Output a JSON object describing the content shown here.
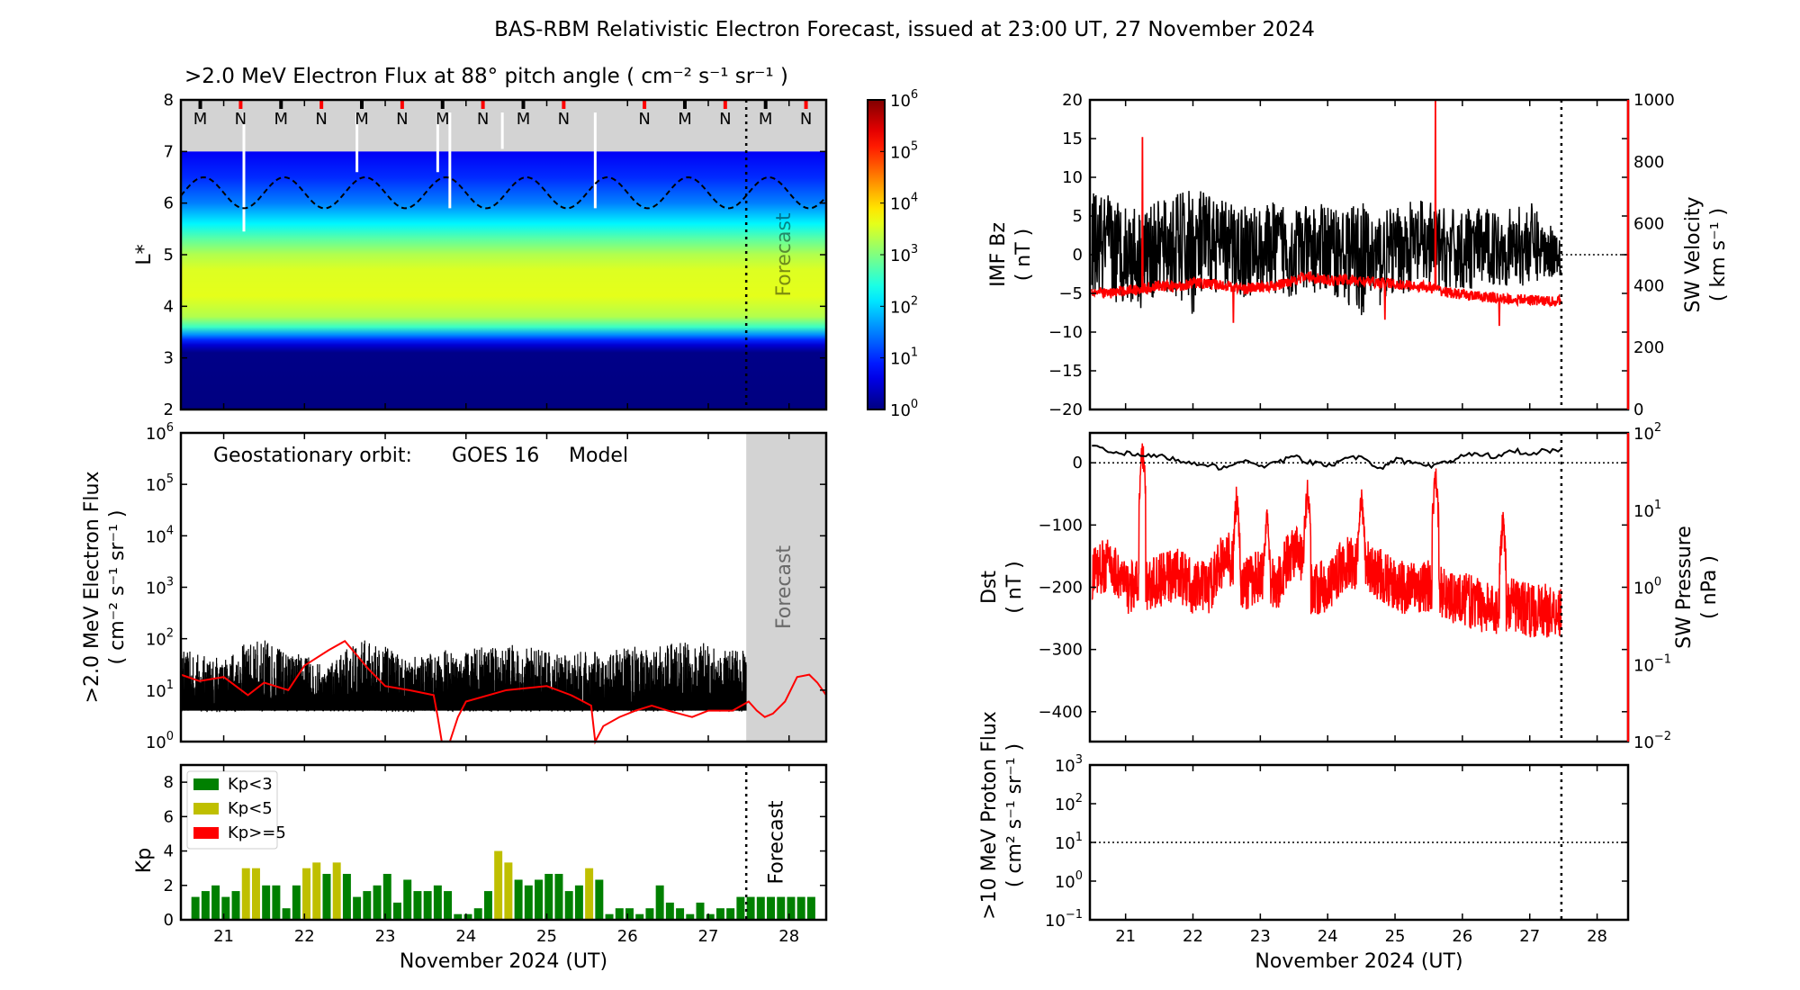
{
  "title": "BAS-RBM Relativistic Electron Forecast, issued at 23:00 UT, 27 November 2024",
  "x_axis": {
    "label": "November 2024 (UT)",
    "ticks": [
      21,
      22,
      23,
      24,
      25,
      26,
      27,
      28
    ],
    "xlim": [
      20.47,
      28.46
    ],
    "forecast_start": 27.47
  },
  "forecast_label": "Forecast",
  "chart_data": [
    {
      "id": "lstar_flux",
      "type": "heatmap",
      "title": ">2.0 MeV Electron Flux at 88° pitch angle ( cm⁻² s⁻¹ sr⁻¹ )",
      "ylabel": "L*",
      "ylim": [
        2,
        8
      ],
      "yticks": [
        2,
        3,
        4,
        5,
        6,
        7,
        8
      ],
      "no_data_above_L": 7,
      "log10_flux_profile": [
        {
          "L": 2.0,
          "v": 0.0
        },
        {
          "L": 3.1,
          "v": 0.05
        },
        {
          "L": 3.25,
          "v": 0.5
        },
        {
          "L": 3.35,
          "v": 1.0
        },
        {
          "L": 3.45,
          "v": 1.6
        },
        {
          "L": 3.6,
          "v": 2.6
        },
        {
          "L": 3.8,
          "v": 3.3
        },
        {
          "L": 4.2,
          "v": 3.6
        },
        {
          "L": 4.7,
          "v": 3.55
        },
        {
          "L": 5.0,
          "v": 3.3
        },
        {
          "L": 5.3,
          "v": 2.8
        },
        {
          "L": 5.6,
          "v": 2.2
        },
        {
          "L": 6.0,
          "v": 1.5
        },
        {
          "L": 6.5,
          "v": 1.0
        },
        {
          "L": 7.0,
          "v": 0.7
        }
      ],
      "dashed_curve": {
        "mean_L": 6.2,
        "amplitude_L": 0.3,
        "period_days": 1
      },
      "markers": [
        {
          "x": 20.71,
          "label": "M",
          "color": "#000000"
        },
        {
          "x": 21.21,
          "label": "N",
          "color": "#ff0000"
        },
        {
          "x": 21.71,
          "label": "M",
          "color": "#000000"
        },
        {
          "x": 22.21,
          "label": "N",
          "color": "#ff0000"
        },
        {
          "x": 22.71,
          "label": "M",
          "color": "#000000"
        },
        {
          "x": 23.21,
          "label": "N",
          "color": "#ff0000"
        },
        {
          "x": 23.71,
          "label": "M",
          "color": "#000000"
        },
        {
          "x": 24.21,
          "label": "N",
          "color": "#ff0000"
        },
        {
          "x": 24.71,
          "label": "M",
          "color": "#000000"
        },
        {
          "x": 25.21,
          "label": "N",
          "color": "#ff0000"
        },
        {
          "x": 26.21,
          "label": "N",
          "color": "#ff0000"
        },
        {
          "x": 26.71,
          "label": "M",
          "color": "#000000"
        },
        {
          "x": 27.21,
          "label": "N",
          "color": "#ff0000"
        },
        {
          "x": 27.71,
          "label": "M",
          "color": "#000000"
        },
        {
          "x": 28.21,
          "label": "N",
          "color": "#ff0000"
        }
      ],
      "colorbar": {
        "min_exp": 0,
        "max_exp": 6,
        "tick_exps": [
          0,
          1,
          2,
          3,
          4,
          5,
          6
        ],
        "colormap": "jet"
      }
    },
    {
      "id": "geo_flux",
      "type": "line",
      "title_left": "Geostationary orbit:",
      "title_sat": "GOES 16",
      "title_model": "Model",
      "ylabel": [
        ">2.0 MeV Electron Flux",
        "( cm⁻² s⁻¹ sr⁻¹ )"
      ],
      "yscale": "log",
      "ylim_exp": [
        0,
        6
      ],
      "tick_exps": [
        0,
        1,
        2,
        3,
        4,
        5,
        6
      ],
      "goes_floor": 4,
      "goes_peak_per_6h": [
        60,
        50,
        40,
        80,
        100,
        60,
        50,
        30,
        60,
        100,
        70,
        40,
        50,
        60,
        60,
        70,
        80,
        70,
        60,
        50,
        60,
        50,
        80,
        60,
        80,
        90,
        80,
        60
      ],
      "model_x": [
        20.47,
        20.7,
        21.0,
        21.3,
        21.5,
        21.8,
        22.0,
        22.3,
        22.5,
        22.8,
        23.0,
        23.3,
        23.6,
        23.65,
        23.7,
        23.8,
        23.9,
        24.0,
        24.5,
        25.0,
        25.3,
        25.55,
        25.6,
        25.7,
        25.9,
        26.1,
        26.3,
        26.5,
        26.8,
        27.0,
        27.3,
        27.5,
        27.6,
        27.7,
        27.8,
        27.95,
        28.1,
        28.25,
        28.35,
        28.46
      ],
      "model_y": [
        20,
        15,
        18,
        8,
        14,
        10,
        30,
        60,
        90,
        25,
        12,
        10,
        8,
        3,
        0.5,
        0.8,
        3,
        6,
        10,
        12,
        8,
        5,
        0.3,
        2,
        3,
        4,
        5,
        4,
        3,
        4,
        4,
        6,
        4,
        3,
        3.5,
        6,
        18,
        20,
        14,
        8
      ]
    },
    {
      "id": "kp",
      "type": "bar",
      "ylabel": "Kp",
      "ylim": [
        0,
        9
      ],
      "yticks": [
        0,
        2,
        4,
        6,
        8
      ],
      "first_bar_center": 20.65,
      "bar_spacing_days": 0.125,
      "values": [
        1.33,
        1.67,
        2,
        1.33,
        1.67,
        3,
        3,
        2,
        2,
        0.67,
        2,
        3,
        3.33,
        2.67,
        3.33,
        2.67,
        1.33,
        1.67,
        2,
        2.67,
        1,
        2.33,
        1.67,
        1.67,
        2,
        1.67,
        0.33,
        0.33,
        0.67,
        1.67,
        4,
        3.33,
        2.33,
        2,
        2.33,
        2.67,
        2.67,
        1.67,
        2,
        3,
        2.33,
        0.33,
        0.67,
        0.67,
        0.33,
        0.67,
        2,
        1,
        0.67,
        0.33,
        1,
        0.33,
        0.67,
        0.67,
        1.33,
        1.33,
        1.33,
        1.33,
        1.33,
        1.33,
        1.33,
        1.33
      ],
      "legend": [
        {
          "label": "Kp<3",
          "color": "#008000"
        },
        {
          "label": "Kp<5",
          "color": "#bfbf00"
        },
        {
          "label": "Kp>=5",
          "color": "#ff0000"
        }
      ],
      "legend_position": "top-left"
    },
    {
      "id": "imf_sw",
      "type": "line",
      "ylabel_left": [
        "IMF Bz",
        "( nT )"
      ],
      "ylabel_right": [
        "SW Velocity",
        "( km s⁻¹ )"
      ],
      "ylim_left": [
        -20,
        20
      ],
      "yticks_left": [
        -20,
        -15,
        -10,
        -5,
        0,
        5,
        10,
        15,
        20
      ],
      "ylim_right": [
        0,
        1000
      ],
      "yticks_right": [
        0,
        200,
        400,
        600,
        800,
        1000
      ],
      "bz_min_per_6h": [
        -5,
        -7,
        -6,
        -7,
        -5,
        -6,
        -8,
        -5,
        -5,
        -6,
        -5,
        -5,
        -6,
        -5,
        -5,
        -6,
        -8,
        -7,
        -5,
        -5,
        -5,
        -5,
        -5,
        -4,
        -4,
        -4,
        -4,
        -3
      ],
      "bz_max_per_6h": [
        8,
        8,
        7,
        6,
        7,
        8,
        9,
        8,
        7,
        7,
        6,
        7,
        7,
        6,
        7,
        6,
        7,
        6,
        6,
        7,
        7,
        6,
        6,
        6,
        6,
        6,
        7,
        4
      ],
      "velocity_per_6h": [
        380,
        375,
        385,
        390,
        400,
        395,
        410,
        405,
        400,
        390,
        395,
        400,
        420,
        430,
        415,
        420,
        415,
        410,
        405,
        400,
        395,
        380,
        370,
        365,
        360,
        355,
        355,
        350
      ],
      "velocity_spikes": [
        {
          "x": 21.25,
          "v": 880
        },
        {
          "x": 25.6,
          "v": 1000
        },
        {
          "x": 22.6,
          "v": 280
        },
        {
          "x": 26.55,
          "v": 270
        },
        {
          "x": 24.85,
          "v": 290
        }
      ]
    },
    {
      "id": "dst_pressure",
      "type": "line",
      "ylabel_left": [
        "Dst",
        "( nT )"
      ],
      "ylabel_right": [
        "SW Pressure",
        "( nPa )"
      ],
      "ylim_left": [
        -448,
        48
      ],
      "yticks_left": [
        0,
        -100,
        -200,
        -300,
        -400
      ],
      "ylim_right_exp": [
        -2,
        2
      ],
      "tick_exps_right": [
        -2,
        -1,
        0,
        1,
        2
      ],
      "dst_per_6h": [
        30,
        20,
        15,
        10,
        12,
        5,
        0,
        -5,
        -10,
        5,
        -5,
        0,
        10,
        0,
        -5,
        5,
        10,
        -10,
        5,
        0,
        -5,
        0,
        10,
        15,
        10,
        20,
        15,
        20
      ],
      "pressure_per_6h": [
        1.5,
        2,
        1,
        1,
        1.2,
        1.5,
        1,
        1,
        2.5,
        1,
        1.5,
        1,
        3,
        1,
        1,
        2,
        2,
        1.5,
        1,
        1,
        1,
        0.8,
        0.7,
        0.6,
        0.5,
        0.6,
        0.5,
        0.5
      ],
      "pressure_spikes": [
        {
          "x": 21.25,
          "v": 100
        },
        {
          "x": 22.65,
          "v": 25
        },
        {
          "x": 23.1,
          "v": 12
        },
        {
          "x": 23.7,
          "v": 30
        },
        {
          "x": 24.5,
          "v": 22
        },
        {
          "x": 25.6,
          "v": 45
        },
        {
          "x": 26.6,
          "v": 12
        }
      ]
    },
    {
      "id": "proton_flux",
      "type": "line",
      "ylabel": [
        ">10 MeV Proton Flux",
        "( cm² s⁻¹ sr⁻¹ )"
      ],
      "yscale": "log",
      "ylim_exp": [
        -1,
        3
      ],
      "tick_exps": [
        -1,
        0,
        1,
        2,
        3
      ],
      "threshold": 10
    }
  ]
}
